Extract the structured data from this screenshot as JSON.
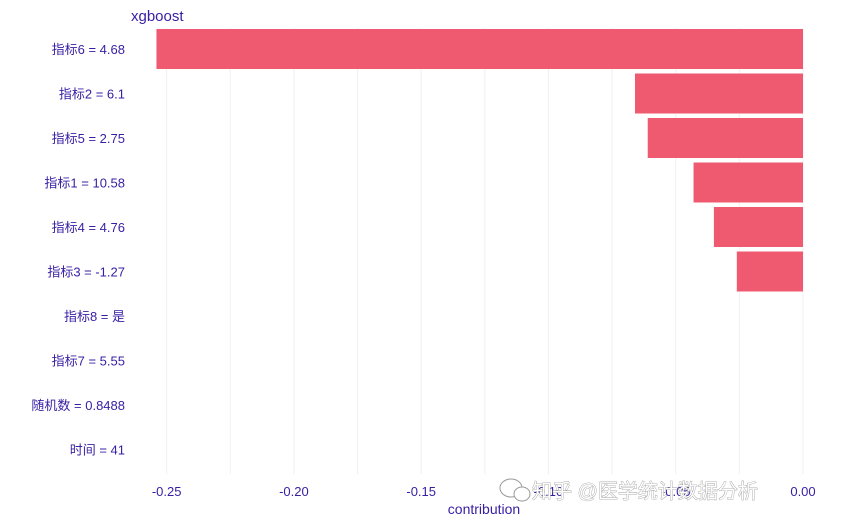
{
  "chart_data": {
    "type": "bar",
    "orientation": "horizontal",
    "model_title": "xgboost",
    "xlabel": "contribution",
    "xlim": [
      -0.264,
      0.0
    ],
    "xticks": [
      -0.25,
      -0.2,
      -0.15,
      -0.1,
      -0.05,
      0.0
    ],
    "xtick_labels": [
      "-0.25",
      "-0.20",
      "-0.15",
      "-0.10",
      "-0.05",
      "0.00"
    ],
    "grid": true,
    "bar_color": "#f05a71",
    "categories": [
      "指标6 = 4.68",
      "指标2 = 6.1",
      "指标5 = 2.75",
      "指标1 = 10.58",
      "指标4 = 4.76",
      "指标3 = -1.27",
      "指标8 = 是",
      "指标7 = 5.55",
      "随机数 = 0.8488",
      "时间 = 41"
    ],
    "values": [
      -0.254,
      -0.066,
      -0.061,
      -0.043,
      -0.035,
      -0.026,
      0.0,
      0.0,
      0.0,
      0.0
    ]
  },
  "watermark": "知乎 @医学统计数据分析",
  "colors": {
    "text": "#371ea3",
    "grid": "#f0f0f4",
    "bar": "#f05a71"
  }
}
